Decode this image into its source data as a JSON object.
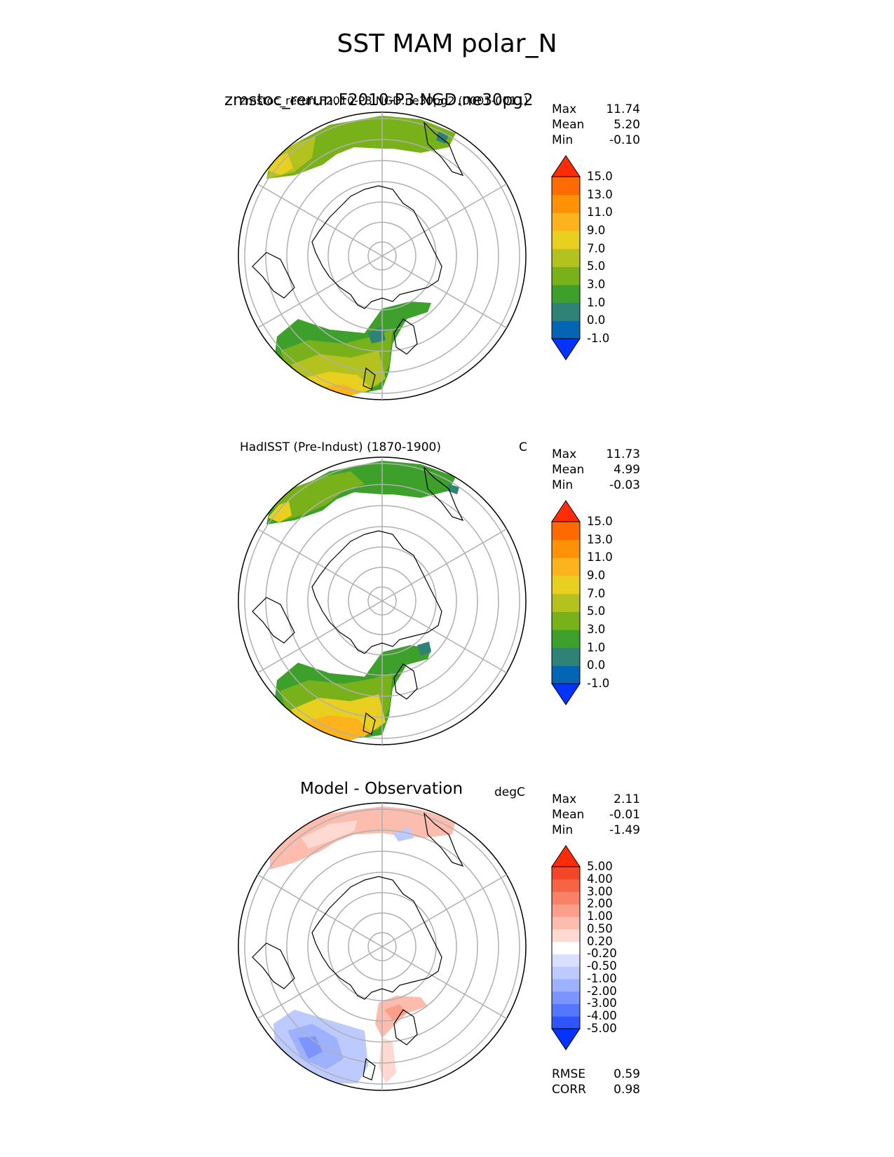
{
  "figure_title": "SST MAM polar_N",
  "panels": [
    {
      "title_large": "zmstoc_rerun.F2010-P3.NGD.ne30pg2",
      "title_small": "zmstoc_rerun.F2010-P3.NGD.ne30pg2 (0001-0011)",
      "units": "",
      "stats": {
        "max_label": "Max",
        "max": "11.74",
        "mean_label": "Mean",
        "mean": "5.20",
        "min_label": "Min",
        "min": "-0.10"
      },
      "colorbar_ticks": [
        "15.0",
        "13.0",
        "11.0",
        "9.0",
        "7.0",
        "5.0",
        "3.0",
        "1.0",
        "0.0",
        "-1.0"
      ]
    },
    {
      "title": "HadISST (Pre-Indust) (1870-1900)",
      "units": "C",
      "stats": {
        "max_label": "Max",
        "max": "11.73",
        "mean_label": "Mean",
        "mean": "4.99",
        "min_label": "Min",
        "min": "-0.03"
      },
      "colorbar_ticks": [
        "15.0",
        "13.0",
        "11.0",
        "9.0",
        "7.0",
        "5.0",
        "3.0",
        "1.0",
        "0.0",
        "-1.0"
      ]
    },
    {
      "title": "Model - Observation",
      "units": "degC",
      "stats": {
        "max_label": "Max",
        "max": "2.11",
        "mean_label": "Mean",
        "mean": "-0.01",
        "min_label": "Min",
        "min": "-1.49"
      },
      "colorbar_ticks": [
        "5.00",
        "4.00",
        "3.00",
        "2.00",
        "1.00",
        "0.50",
        "0.20",
        "-0.20",
        "-0.50",
        "-1.00",
        "-2.00",
        "-3.00",
        "-4.00",
        "-5.00"
      ],
      "metrics": {
        "rmse_label": "RMSE",
        "rmse": "0.59",
        "corr_label": "CORR",
        "corr": "0.98"
      }
    }
  ],
  "colors": {
    "sst_levels": [
      "#0433ff",
      "#0565b5",
      "#2e8276",
      "#3da02a",
      "#79b11b",
      "#b3c21e",
      "#e8cf20",
      "#fdb41c",
      "#fd9207",
      "#fd6a02",
      "#ff2c07"
    ],
    "diff_levels": [
      "#0433ff",
      "#2e55fe",
      "#5577fe",
      "#7c95fe",
      "#9eb1fe",
      "#bccafe",
      "#d9e0fd",
      "#ffffff",
      "#fdd9d1",
      "#fcbcae",
      "#fb9e8a",
      "#f98266",
      "#f76445",
      "#f54629",
      "#ff2c07"
    ]
  }
}
